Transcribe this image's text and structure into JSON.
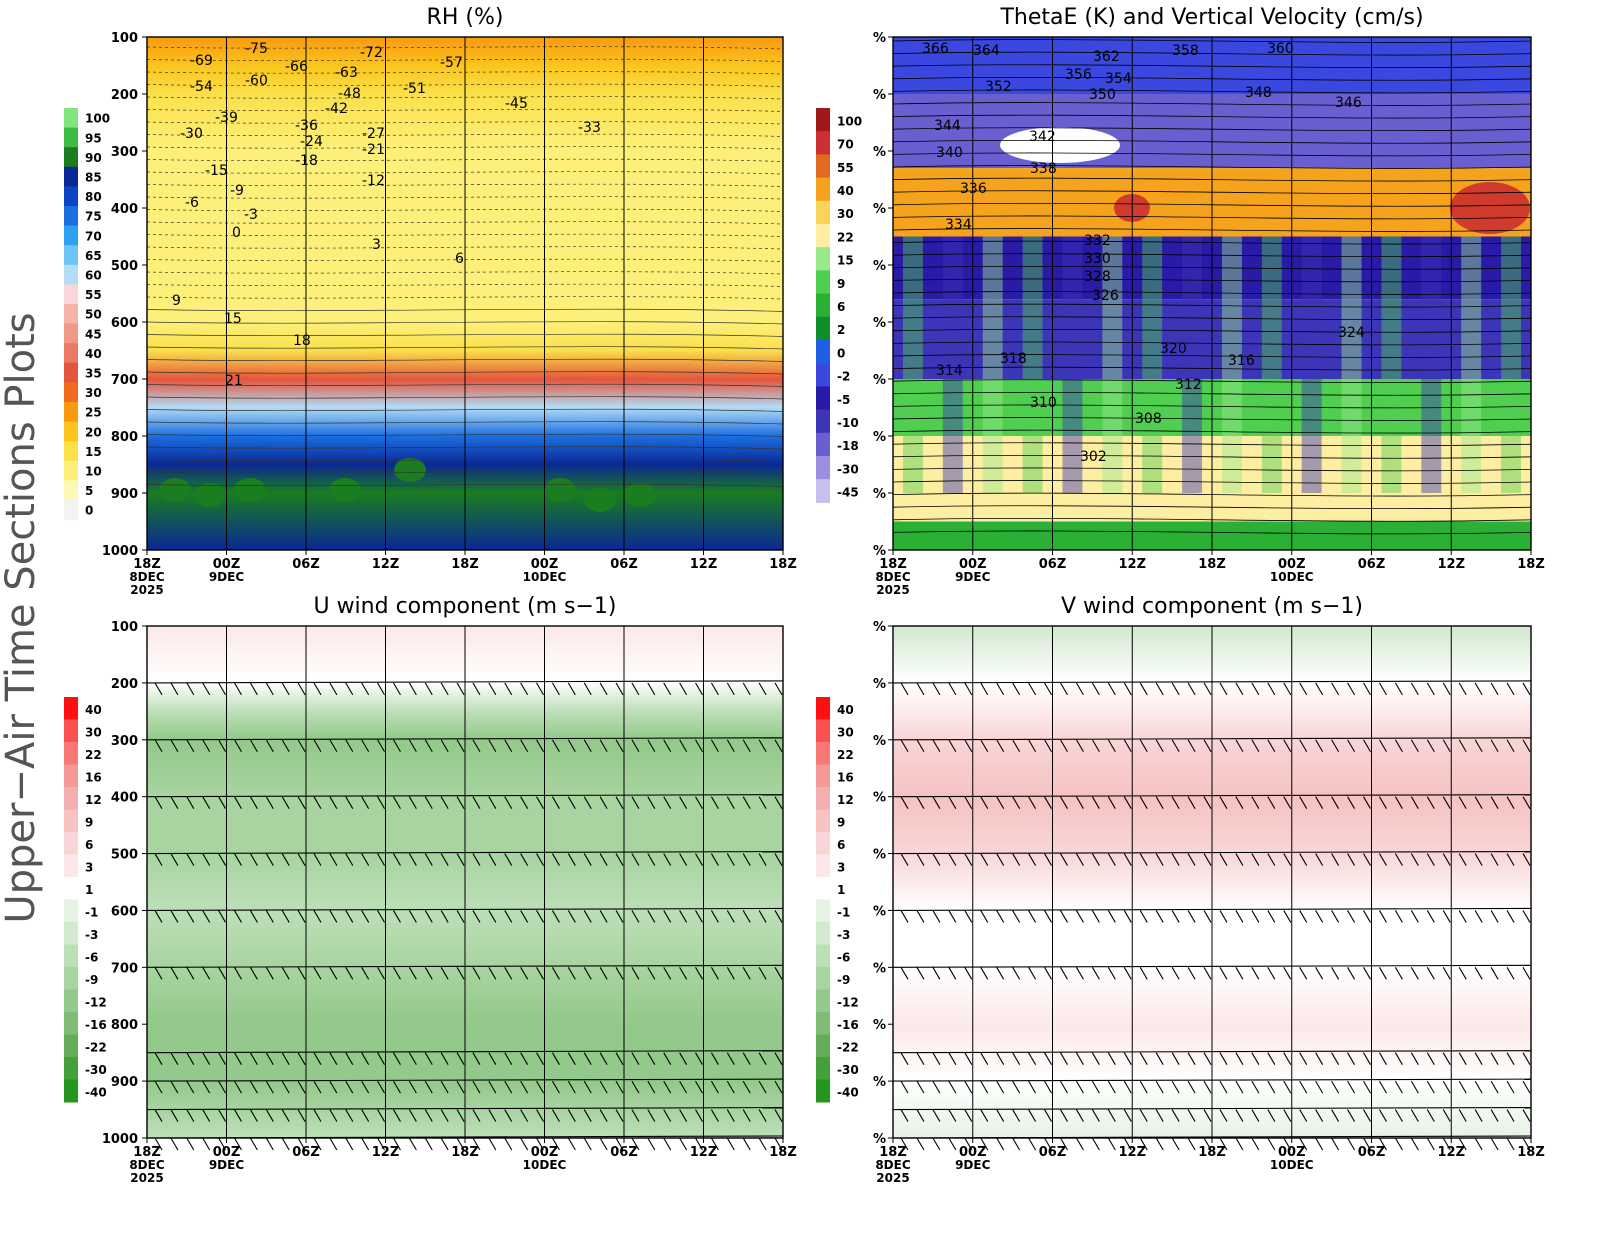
{
  "figure": {
    "side_title": "Upper−Air Time Sections Plots"
  },
  "time_axis": {
    "ticks": [
      "18Z",
      "00Z",
      "06Z",
      "12Z",
      "18Z",
      "00Z",
      "06Z",
      "12Z",
      "18Z"
    ],
    "date_labels": [
      "8DEC",
      "9DEC",
      "10DEC"
    ],
    "year": "2025"
  },
  "colors": {
    "grid": "#000000",
    "text": "#000000",
    "missing": "#f2f2f2"
  },
  "chart_data": [
    {
      "id": "rh",
      "type": "heatmap",
      "title": "RH (%)",
      "ylabel_ticks": [
        "100",
        "200",
        "300",
        "400",
        "500",
        "600",
        "700",
        "800",
        "900",
        "1000"
      ],
      "pressure_levels": [
        100,
        200,
        300,
        400,
        500,
        600,
        700,
        800,
        900,
        1000
      ],
      "colorbar": {
        "labels": [
          "100",
          "95",
          "90",
          "85",
          "80",
          "75",
          "70",
          "65",
          "60",
          "55",
          "50",
          "45",
          "40",
          "35",
          "30",
          "25",
          "20",
          "15",
          "10",
          "5",
          "0"
        ],
        "colors": [
          "#80e57d",
          "#3ebb45",
          "#1a7d1f",
          "#0a2896",
          "#0b45c2",
          "#1c6fe0",
          "#2ea0f0",
          "#6cc4f5",
          "#b2dcf7",
          "#f7d7d7",
          "#f4b4a8",
          "#ef9a86",
          "#ea7a62",
          "#e5553b",
          "#f06a20",
          "#f79a10",
          "#fbc51c",
          "#fbe04a",
          "#fdf07a",
          "#fdf8b6",
          "#f3f3f3"
        ]
      },
      "rh_by_pressure": [
        {
          "p": 100,
          "rh": 25
        },
        {
          "p": 150,
          "rh": 20
        },
        {
          "p": 200,
          "rh": 15
        },
        {
          "p": 300,
          "rh": 10
        },
        {
          "p": 400,
          "rh": 10
        },
        {
          "p": 500,
          "rh": 10
        },
        {
          "p": 600,
          "rh": 10
        },
        {
          "p": 650,
          "rh": 15
        },
        {
          "p": 700,
          "rh": 35
        },
        {
          "p": 750,
          "rh": 60
        },
        {
          "p": 800,
          "rh": 75
        },
        {
          "p": 850,
          "rh": 85
        },
        {
          "p": 900,
          "rh": 90
        },
        {
          "p": 1000,
          "rh": 85
        }
      ],
      "contour_labels": [
        "-75",
        "-72",
        "-69",
        "-66",
        "-63",
        "-60",
        "-57",
        "-54",
        "-51",
        "-48",
        "-45",
        "-42",
        "-39",
        "-36",
        "-33",
        "-30",
        "-27",
        "-24",
        "-21",
        "-18",
        "-15",
        "-12",
        "-9",
        "-6",
        "-3",
        "0",
        "3",
        "6",
        "9",
        "15",
        "18",
        "21"
      ]
    },
    {
      "id": "thetae",
      "type": "heatmap",
      "title": "ThetaE (K) and Vertical Velocity (cm/s)",
      "ylabel_ticks": [
        "%",
        "%",
        "%",
        "%",
        "%",
        "%",
        "%",
        "%",
        "%",
        "%"
      ],
      "colorbar": {
        "labels": [
          "100",
          "70",
          "55",
          "40",
          "30",
          "22",
          "15",
          "9",
          "6",
          "2",
          "0",
          "-2",
          "-5",
          "-10",
          "-18",
          "-30",
          "-45"
        ],
        "colors": [
          "#a01818",
          "#cc3030",
          "#e06a1f",
          "#f5a21c",
          "#fbd25a",
          "#fdeea2",
          "#9ae88c",
          "#4fce4f",
          "#2ab034",
          "#0e8f2a",
          "#1f5fe6",
          "#3a48e0",
          "#2a1aa8",
          "#3c35b8",
          "#6a5fd1",
          "#9a8ee0",
          "#c7c0ee"
        ]
      },
      "contour_labels": [
        "366",
        "364",
        "362",
        "360",
        "358",
        "356",
        "354",
        "352",
        "350",
        "348",
        "346",
        "344",
        "342",
        "340",
        "338",
        "336",
        "334",
        "332",
        "330",
        "328",
        "326",
        "324",
        "320",
        "318",
        "316",
        "314",
        "312",
        "310",
        "308",
        "302"
      ]
    },
    {
      "id": "uwind",
      "type": "heatmap",
      "title": "U wind component (m s−1)",
      "ylabel_ticks": [
        "100",
        "200",
        "300",
        "400",
        "500",
        "600",
        "700",
        "800",
        "900",
        "1000"
      ],
      "colorbar": {
        "labels": [
          "40",
          "30",
          "22",
          "16",
          "12",
          "9",
          "6",
          "3",
          "1",
          "-1",
          "-3",
          "-6",
          "-9",
          "-12",
          "-16",
          "-22",
          "-30",
          "-40"
        ],
        "colors": [
          "#ff1010",
          "#fb5050",
          "#f87878",
          "#f59898",
          "#f3aeae",
          "#f6c2c2",
          "#f9d6d6",
          "#fce8e8",
          "#ffffff",
          "#e6f2e4",
          "#d2e9cf",
          "#bddfb8",
          "#a8d4a0",
          "#93c98a",
          "#7ebd73",
          "#63ad58",
          "#44a03a",
          "#24961c"
        ]
      },
      "u_by_pressure": [
        {
          "p": 100,
          "u": 3
        },
        {
          "p": 200,
          "u": 1
        },
        {
          "p": 250,
          "u": -6
        },
        {
          "p": 300,
          "u": -12
        },
        {
          "p": 400,
          "u": -9
        },
        {
          "p": 500,
          "u": -9
        },
        {
          "p": 600,
          "u": -6
        },
        {
          "p": 700,
          "u": -9
        },
        {
          "p": 800,
          "u": -12
        },
        {
          "p": 900,
          "u": -12
        },
        {
          "p": 1000,
          "u": -6
        }
      ],
      "barb_levels": [
        200,
        300,
        400,
        500,
        600,
        700,
        850,
        900,
        950,
        1000
      ]
    },
    {
      "id": "vwind",
      "type": "heatmap",
      "title": "V wind component (m s−1)",
      "ylabel_ticks": [
        "%",
        "%",
        "%",
        "%",
        "%",
        "%",
        "%",
        "%",
        "%",
        "%"
      ],
      "colorbar": {
        "labels": [
          "40",
          "30",
          "22",
          "16",
          "12",
          "9",
          "6",
          "3",
          "1",
          "-1",
          "-3",
          "-6",
          "-9",
          "-12",
          "-16",
          "-22",
          "-30",
          "-40"
        ],
        "colors": [
          "#ff1010",
          "#fb5050",
          "#f87878",
          "#f59898",
          "#f3aeae",
          "#f6c2c2",
          "#f9d6d6",
          "#fce8e8",
          "#ffffff",
          "#e6f2e4",
          "#d2e9cf",
          "#bddfb8",
          "#a8d4a0",
          "#93c98a",
          "#7ebd73",
          "#63ad58",
          "#44a03a",
          "#24961c"
        ]
      },
      "v_by_pressure": [
        {
          "p": 100,
          "v": -3
        },
        {
          "p": 200,
          "v": 1
        },
        {
          "p": 300,
          "v": 6
        },
        {
          "p": 400,
          "v": 9
        },
        {
          "p": 500,
          "v": 6
        },
        {
          "p": 600,
          "v": 1
        },
        {
          "p": 700,
          "v": 1
        },
        {
          "p": 800,
          "v": 3
        },
        {
          "p": 900,
          "v": 1
        },
        {
          "p": 1000,
          "v": -1
        }
      ],
      "barb_levels": [
        200,
        300,
        400,
        500,
        600,
        700,
        850,
        900,
        950,
        1000
      ]
    }
  ]
}
